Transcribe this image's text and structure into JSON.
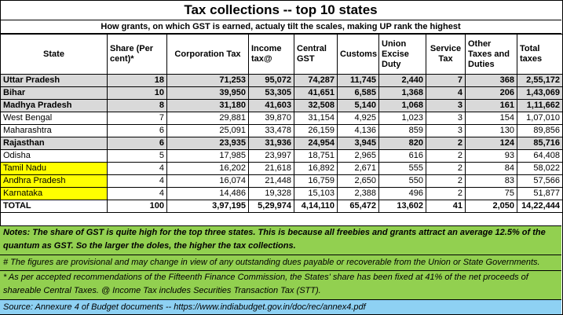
{
  "title": "Tax collections -- top 10 states",
  "subtitle": "How grants, on which GST is earned, actualy tilt the scales, making UP rank the highest",
  "table": {
    "headers": [
      "State",
      "Share (Per cent)*",
      "Corporation Tax",
      "Income tax@",
      "Central GST",
      "Customs",
      "Union Excise Duty",
      "Service Tax",
      "Other Taxes and Duties",
      "Total taxes"
    ],
    "rows": [
      {
        "state": "Uttar Pradesh",
        "share": "18",
        "corp": "71,253",
        "income": "95,072",
        "cgst": "74,287",
        "customs": "11,745",
        "excise": "2,440",
        "service": "7",
        "other": "368",
        "total": "2,55,172",
        "highlight": "gray"
      },
      {
        "state": "Bihar",
        "share": "10",
        "corp": "39,950",
        "income": "53,305",
        "cgst": "41,651",
        "customs": "6,585",
        "excise": "1,368",
        "service": "4",
        "other": "206",
        "total": "1,43,069",
        "highlight": "gray"
      },
      {
        "state": "Madhya Pradesh",
        "share": "8",
        "corp": "31,180",
        "income": "41,603",
        "cgst": "32,508",
        "customs": "5,140",
        "excise": "1,068",
        "service": "3",
        "other": "161",
        "total": "1,11,662",
        "highlight": "gray"
      },
      {
        "state": "West Bengal",
        "share": "7",
        "corp": "29,881",
        "income": "39,870",
        "cgst": "31,154",
        "customs": "4,925",
        "excise": "1,023",
        "service": "3",
        "other": "154",
        "total": "1,07,010",
        "highlight": "none"
      },
      {
        "state": "Maharashtra",
        "share": "6",
        "corp": "25,091",
        "income": "33,478",
        "cgst": "26,159",
        "customs": "4,136",
        "excise": "859",
        "service": "3",
        "other": "130",
        "total": "89,856",
        "highlight": "none"
      },
      {
        "state": "Rajasthan",
        "share": "6",
        "corp": "23,935",
        "income": "31,936",
        "cgst": "24,954",
        "customs": "3,945",
        "excise": "820",
        "service": "2",
        "other": "124",
        "total": "85,716",
        "highlight": "gray"
      },
      {
        "state": "Odisha",
        "share": "5",
        "corp": "17,985",
        "income": "23,997",
        "cgst": "18,751",
        "customs": "2,965",
        "excise": "616",
        "service": "2",
        "other": "93",
        "total": "64,408",
        "highlight": "none"
      },
      {
        "state": "Tamil Nadu",
        "share": "4",
        "corp": "16,202",
        "income": "21,618",
        "cgst": "16,892",
        "customs": "2,671",
        "excise": "555",
        "service": "2",
        "other": "84",
        "total": "58,022",
        "highlight": "yellow"
      },
      {
        "state": "Andhra Pradesh",
        "share": "4",
        "corp": "16,074",
        "income": "21,448",
        "cgst": "16,759",
        "customs": "2,650",
        "excise": "550",
        "service": "2",
        "other": "83",
        "total": "57,566",
        "highlight": "yellow"
      },
      {
        "state": "Karnataka",
        "share": "4",
        "corp": "14,486",
        "income": "19,328",
        "cgst": "15,103",
        "customs": "2,388",
        "excise": "496",
        "service": "2",
        "other": "75",
        "total": "51,877",
        "highlight": "yellow"
      }
    ],
    "total": {
      "state": "TOTAL",
      "share": "100",
      "corp": "3,97,195",
      "income": "5,29,974",
      "cgst": "4,14,110",
      "customs": "65,472",
      "excise": "13,602",
      "service": "41",
      "other": "2,050",
      "total": "14,22,444"
    }
  },
  "notes": "Notes:  The share of GST is quite high for the top three states.  This is because all freebies and grants attract an average 12.5% of the quantum as GST.  So the larger the doles, the higher the tax collections.",
  "note_provisional": "# The figures are provisional and may change in view of any outstanding dues payable or recoverable from the Union or State Governments.",
  "note_share": "* As per accepted recommendations of the Fifteenth Finance Commission, the States' share has been fixed at 41% of the net proceeds of shareable Central Taxes. @ Income Tax includes Securities Transaction Tax (STT).",
  "source": "Source:  Annexure 4 of Budget documents -- https://www.indiabudget.gov.in/doc/rec/annex4.pdf",
  "colors": {
    "gray_row": "#d9d9d9",
    "yellow_cell": "#ffff00",
    "notes_bg": "#92d050",
    "source_bg": "#8ed1f3"
  }
}
